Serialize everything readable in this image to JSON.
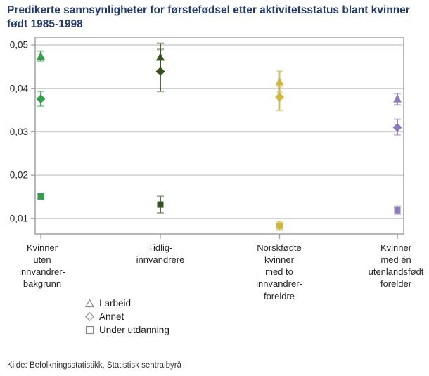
{
  "title": "Predikerte sannsynligheter for førstefødsel etter aktivitetsstatus blant kvinner født 1985-1998",
  "source": "Kilde: Befolkningsstatistikk, Statistisk sentralbyrå",
  "legend": {
    "items": [
      {
        "label": "I arbeid",
        "marker": "triangle"
      },
      {
        "label": "Annet",
        "marker": "diamond"
      },
      {
        "label": "Under utdanning",
        "marker": "square"
      }
    ]
  },
  "chart_data": {
    "type": "scatter",
    "title": "Predikerte sannsynligheter for førstefødsel etter aktivitetsstatus blant kvinner født 1985-1998",
    "xlabel": "",
    "ylabel": "",
    "grid": true,
    "legend_position": "bottom-left",
    "ylim": [
      0.0064,
      0.0518
    ],
    "y_ticks": [
      {
        "value": 0.05,
        "label": "0,05"
      },
      {
        "value": 0.04,
        "label": "0,04"
      },
      {
        "value": 0.03,
        "label": "0,03"
      },
      {
        "value": 0.02,
        "label": "0,02"
      },
      {
        "value": 0.01,
        "label": "0,01"
      }
    ],
    "categories": [
      {
        "name": "Kvinner uten innvandrerbakgrunn",
        "label_lines": "Kvinner\nuten\ninnvandrer-\nbakgrunn",
        "color": "#2fa148"
      },
      {
        "name": "Tidliginnvandrere",
        "label_lines": "Tidlig-\ninnvandrere",
        "color": "#36521f"
      },
      {
        "name": "Norskfødte kvinner med to innvandrerforeldre",
        "label_lines": "Norskfødte\nkvinner\nmed to\ninnvandrer-\nforeldre",
        "color": "#d2b53d"
      },
      {
        "name": "Kvinner med én utenlandsfødt forelder",
        "label_lines": "Kvinner\nmed én\nutenlandsfødt\nforelder",
        "color": "#8f7abc"
      }
    ],
    "series": [
      {
        "name": "I arbeid",
        "marker": "triangle",
        "points": [
          {
            "value": 0.0474,
            "ci_low": 0.0463,
            "ci_high": 0.0486
          },
          {
            "value": 0.0472,
            "ci_low": 0.0441,
            "ci_high": 0.0504
          },
          {
            "value": 0.0415,
            "ci_low": 0.0391,
            "ci_high": 0.044
          },
          {
            "value": 0.0376,
            "ci_low": 0.0362,
            "ci_high": 0.0388
          }
        ]
      },
      {
        "name": "Annet",
        "marker": "diamond",
        "points": [
          {
            "value": 0.0376,
            "ci_low": 0.0359,
            "ci_high": 0.0393
          },
          {
            "value": 0.0439,
            "ci_low": 0.0393,
            "ci_high": 0.049
          },
          {
            "value": 0.038,
            "ci_low": 0.0349,
            "ci_high": 0.0404
          },
          {
            "value": 0.031,
            "ci_low": 0.0293,
            "ci_high": 0.0329
          }
        ]
      },
      {
        "name": "Under utdanning",
        "marker": "square",
        "points": [
          {
            "value": 0.0151,
            "ci_low": 0.0145,
            "ci_high": 0.0157
          },
          {
            "value": 0.0132,
            "ci_low": 0.0113,
            "ci_high": 0.0151
          },
          {
            "value": 0.0083,
            "ci_low": 0.0074,
            "ci_high": 0.0093
          },
          {
            "value": 0.0119,
            "ci_low": 0.011,
            "ci_high": 0.0128
          }
        ]
      }
    ],
    "style": {
      "grid_color": "#d0d0d0",
      "axis_color": "#a6a6a6",
      "tick_label_color": "#262626",
      "legend_marker_outline": "#8c8c8c",
      "title_color": "#233a70"
    }
  }
}
